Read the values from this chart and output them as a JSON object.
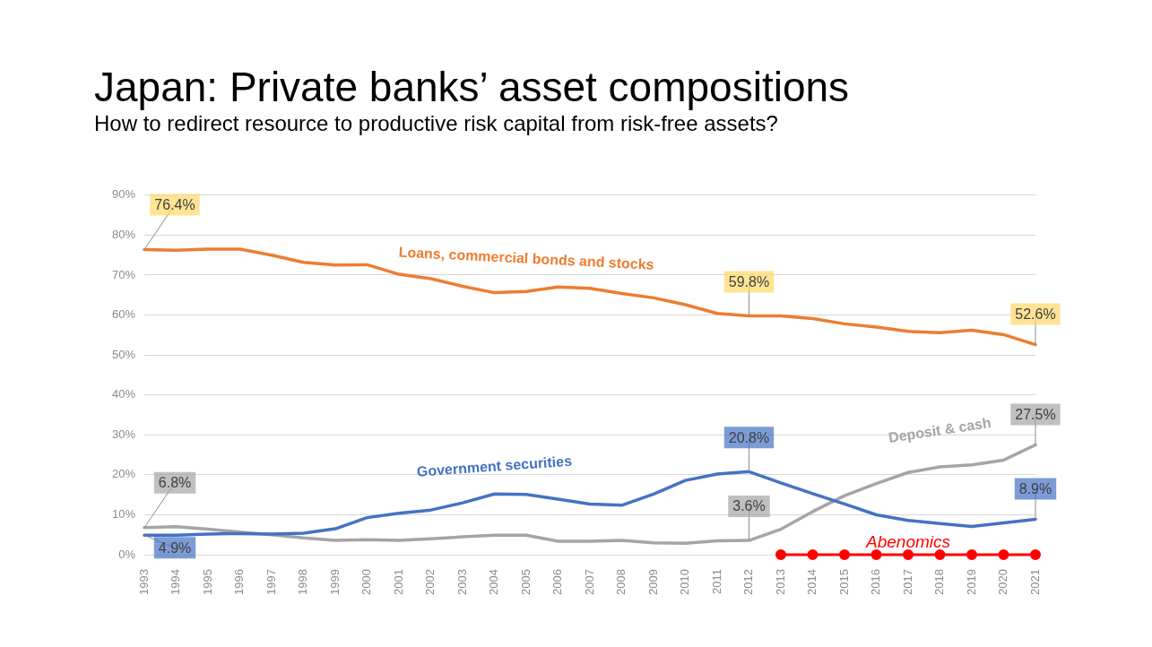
{
  "chart_data": {
    "type": "line",
    "title": "Japan: Private banks’ asset compositions",
    "subtitle": "How to redirect resource to productive risk capital from risk-free assets?",
    "categories": [
      "1993",
      "1994",
      "1995",
      "1996",
      "1997",
      "1998",
      "1999",
      "2000",
      "2001",
      "2002",
      "2003",
      "2004",
      "2005",
      "2006",
      "2007",
      "2008",
      "2009",
      "2010",
      "2011",
      "2012",
      "2013",
      "2014",
      "2015",
      "2016",
      "2017",
      "2018",
      "2019",
      "2020",
      "2021"
    ],
    "series": [
      {
        "name": "Loans, commercial bonds and stocks",
        "color": "#ed7d31",
        "values": [
          76.4,
          76.2,
          76.5,
          76.5,
          75.0,
          73.2,
          72.5,
          72.6,
          70.2,
          69.1,
          67.2,
          65.6,
          65.9,
          67.0,
          66.7,
          65.4,
          64.3,
          62.6,
          60.4,
          59.8,
          59.8,
          59.1,
          57.8,
          57.0,
          55.9,
          55.6,
          56.2,
          55.1,
          52.6
        ],
        "value_labels": [
          "76.4%",
          null,
          null,
          null,
          null,
          null,
          null,
          null,
          null,
          null,
          null,
          null,
          null,
          null,
          null,
          null,
          null,
          null,
          null,
          "59.8%",
          null,
          null,
          null,
          null,
          null,
          null,
          null,
          null,
          "52.6%"
        ]
      },
      {
        "name": "Government securities",
        "color": "#4472c4",
        "values": [
          4.9,
          4.9,
          5.2,
          5.3,
          5.2,
          5.4,
          6.5,
          9.3,
          10.4,
          11.2,
          13.0,
          15.2,
          15.1,
          13.9,
          12.7,
          12.4,
          15.2,
          18.6,
          20.2,
          20.8,
          18.0,
          15.3,
          12.7,
          10.0,
          8.6,
          7.8,
          7.1,
          8.0,
          8.9
        ],
        "value_labels": [
          "4.9%",
          null,
          null,
          null,
          null,
          null,
          null,
          null,
          null,
          null,
          null,
          null,
          null,
          null,
          null,
          null,
          null,
          null,
          null,
          "20.8%",
          null,
          null,
          null,
          null,
          null,
          null,
          null,
          null,
          "8.9%"
        ]
      },
      {
        "name": "Abenomics",
        "color": "#ff0000",
        "values": [
          null,
          null,
          null,
          null,
          null,
          null,
          null,
          null,
          null,
          null,
          null,
          null,
          null,
          null,
          null,
          null,
          null,
          null,
          null,
          null,
          0,
          0,
          0,
          0,
          0,
          0,
          0,
          0,
          0
        ],
        "marker": "circle"
      },
      {
        "name": "Deposit & cash",
        "color": "#a5a5a5",
        "values": [
          6.8,
          7.0,
          6.4,
          5.7,
          5.0,
          4.2,
          3.6,
          3.8,
          3.6,
          4.0,
          4.5,
          4.9,
          4.9,
          3.4,
          3.4,
          3.6,
          3.0,
          2.9,
          3.5,
          3.6,
          6.4,
          10.8,
          14.8,
          17.8,
          20.6,
          22.0,
          22.5,
          23.7,
          27.5
        ],
        "value_labels": [
          "6.8%",
          null,
          null,
          null,
          null,
          null,
          null,
          null,
          null,
          null,
          null,
          null,
          null,
          null,
          null,
          null,
          null,
          null,
          null,
          "3.6%",
          null,
          null,
          null,
          null,
          null,
          null,
          null,
          null,
          "27.5%"
        ]
      }
    ],
    "ylim": [
      0,
      90
    ],
    "yticks": [
      {
        "value": 0,
        "label": "0%"
      },
      {
        "value": 10,
        "label": "10%"
      },
      {
        "value": 20,
        "label": "20%"
      },
      {
        "value": 30,
        "label": "30%"
      },
      {
        "value": 40,
        "label": "40%"
      },
      {
        "value": 50,
        "label": "50%"
      },
      {
        "value": 60,
        "label": "60%"
      },
      {
        "value": 70,
        "label": "70%"
      },
      {
        "value": 80,
        "label": "80%"
      },
      {
        "value": 90,
        "label": "90%"
      }
    ],
    "grid": "y",
    "legend": false,
    "marker": "none",
    "line_style": "solid"
  }
}
